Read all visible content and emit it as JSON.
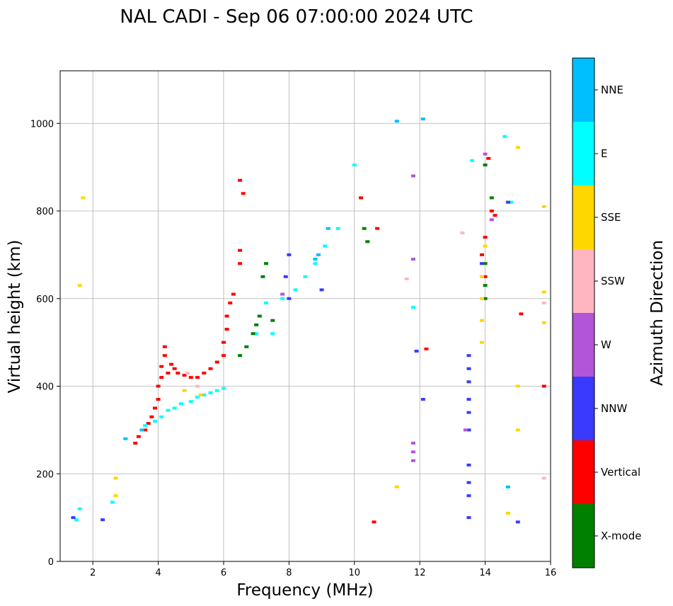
{
  "chart_data": {
    "type": "scatter",
    "title": "NAL CADI - Sep 06 07:00:00 2024 UTC",
    "xlabel": "Frequency (MHz)",
    "ylabel": "Virtual height (km)",
    "xlim": [
      1,
      16
    ],
    "ylim": [
      0,
      1120
    ],
    "xticks": [
      2,
      4,
      6,
      8,
      10,
      12,
      14,
      16
    ],
    "yticks": [
      0,
      200,
      400,
      600,
      800,
      1000
    ],
    "grid": true,
    "colorbar": {
      "label": "Azimuth Direction",
      "categories": [
        {
          "name": "X-mode",
          "color": "#008000"
        },
        {
          "name": "Vertical",
          "color": "#ff0000"
        },
        {
          "name": "NNW",
          "color": "#3a3aff"
        },
        {
          "name": "W",
          "color": "#b255d6"
        },
        {
          "name": "SSW",
          "color": "#ffb6c1"
        },
        {
          "name": "SSE",
          "color": "#ffd700"
        },
        {
          "name": "E",
          "color": "#00ffff"
        },
        {
          "name": "NNE",
          "color": "#00bfff"
        }
      ]
    },
    "series": [
      {
        "name": "Vertical",
        "points": [
          [
            3.3,
            270
          ],
          [
            3.4,
            285
          ],
          [
            3.6,
            300
          ],
          [
            3.7,
            315
          ],
          [
            3.8,
            330
          ],
          [
            3.9,
            350
          ],
          [
            4.0,
            370
          ],
          [
            4.0,
            400
          ],
          [
            4.1,
            420
          ],
          [
            4.1,
            445
          ],
          [
            4.2,
            470
          ],
          [
            4.2,
            490
          ],
          [
            4.3,
            430
          ],
          [
            4.4,
            450
          ],
          [
            4.5,
            440
          ],
          [
            4.6,
            430
          ],
          [
            4.8,
            425
          ],
          [
            5.0,
            420
          ],
          [
            5.2,
            420
          ],
          [
            5.4,
            430
          ],
          [
            5.6,
            440
          ],
          [
            5.8,
            455
          ],
          [
            6.0,
            470
          ],
          [
            6.0,
            500
          ],
          [
            6.1,
            530
          ],
          [
            6.1,
            560
          ],
          [
            6.2,
            590
          ],
          [
            6.3,
            610
          ],
          [
            6.5,
            680
          ],
          [
            6.5,
            710
          ],
          [
            6.6,
            840
          ],
          [
            6.5,
            870
          ],
          [
            10.2,
            830
          ],
          [
            10.7,
            760
          ],
          [
            10.6,
            90
          ],
          [
            12.2,
            485
          ],
          [
            13.9,
            700
          ],
          [
            14.0,
            740
          ],
          [
            14.0,
            650
          ],
          [
            14.1,
            920
          ],
          [
            14.2,
            800
          ],
          [
            14.3,
            790
          ],
          [
            15.1,
            565
          ],
          [
            15.8,
            400
          ]
        ]
      },
      {
        "name": "E",
        "points": [
          [
            3.6,
            310
          ],
          [
            3.9,
            320
          ],
          [
            4.1,
            330
          ],
          [
            4.3,
            345
          ],
          [
            4.5,
            350
          ],
          [
            4.7,
            360
          ],
          [
            5.0,
            365
          ],
          [
            5.2,
            375
          ],
          [
            5.4,
            380
          ],
          [
            5.6,
            385
          ],
          [
            5.8,
            390
          ],
          [
            6.0,
            395
          ],
          [
            7.0,
            520
          ],
          [
            7.1,
            560
          ],
          [
            7.3,
            590
          ],
          [
            7.5,
            520
          ],
          [
            7.8,
            600
          ],
          [
            8.2,
            620
          ],
          [
            8.5,
            650
          ],
          [
            8.8,
            680
          ],
          [
            9.1,
            720
          ],
          [
            9.5,
            760
          ],
          [
            10.0,
            905
          ],
          [
            11.8,
            580
          ],
          [
            13.6,
            915
          ],
          [
            14.6,
            970
          ],
          [
            14.8,
            820
          ],
          [
            1.6,
            120
          ],
          [
            1.5,
            95
          ],
          [
            2.6,
            135
          ]
        ]
      },
      {
        "name": "X-mode",
        "points": [
          [
            6.5,
            470
          ],
          [
            6.7,
            490
          ],
          [
            6.9,
            520
          ],
          [
            7.0,
            540
          ],
          [
            7.1,
            560
          ],
          [
            7.2,
            650
          ],
          [
            7.3,
            680
          ],
          [
            7.5,
            550
          ],
          [
            10.4,
            730
          ],
          [
            10.3,
            760
          ],
          [
            14.0,
            600
          ],
          [
            14.0,
            630
          ],
          [
            14.0,
            680
          ],
          [
            14.2,
            830
          ],
          [
            14.0,
            905
          ]
        ]
      },
      {
        "name": "NNW",
        "points": [
          [
            8.0,
            600
          ],
          [
            7.9,
            650
          ],
          [
            8.0,
            700
          ],
          [
            9.0,
            620
          ],
          [
            11.9,
            480
          ],
          [
            12.1,
            370
          ],
          [
            13.5,
            470
          ],
          [
            13.5,
            440
          ],
          [
            13.5,
            410
          ],
          [
            13.5,
            370
          ],
          [
            13.5,
            340
          ],
          [
            13.5,
            300
          ],
          [
            13.5,
            220
          ],
          [
            13.5,
            180
          ],
          [
            13.5,
            150
          ],
          [
            13.5,
            100
          ],
          [
            13.9,
            680
          ],
          [
            14.7,
            820
          ],
          [
            15.0,
            90
          ],
          [
            2.3,
            95
          ],
          [
            1.4,
            100
          ]
        ]
      },
      {
        "name": "W",
        "points": [
          [
            11.8,
            880
          ],
          [
            11.8,
            690
          ],
          [
            11.8,
            250
          ],
          [
            11.8,
            270
          ],
          [
            11.8,
            230
          ],
          [
            13.4,
            300
          ],
          [
            14.0,
            930
          ],
          [
            14.2,
            780
          ],
          [
            7.8,
            610
          ]
        ]
      },
      {
        "name": "SSE",
        "points": [
          [
            13.9,
            500
          ],
          [
            13.9,
            550
          ],
          [
            13.9,
            600
          ],
          [
            13.9,
            650
          ],
          [
            14.0,
            720
          ],
          [
            15.0,
            945
          ],
          [
            15.0,
            300
          ],
          [
            15.0,
            400
          ],
          [
            15.8,
            810
          ],
          [
            15.8,
            615
          ],
          [
            15.8,
            545
          ],
          [
            14.7,
            110
          ],
          [
            11.3,
            170
          ],
          [
            1.7,
            830
          ],
          [
            1.6,
            630
          ],
          [
            2.7,
            190
          ],
          [
            2.7,
            150
          ],
          [
            4.8,
            390
          ],
          [
            5.3,
            380
          ]
        ]
      },
      {
        "name": "SSW",
        "points": [
          [
            4.9,
            430
          ],
          [
            5.2,
            400
          ],
          [
            13.3,
            750
          ],
          [
            15.8,
            590
          ],
          [
            15.8,
            190
          ],
          [
            11.6,
            645
          ]
        ]
      },
      {
        "name": "NNE",
        "points": [
          [
            9.2,
            760
          ],
          [
            8.9,
            700
          ],
          [
            12.1,
            1010
          ],
          [
            11.3,
            1005
          ],
          [
            8.8,
            690
          ],
          [
            14.7,
            170
          ],
          [
            3.5,
            300
          ],
          [
            3.0,
            280
          ]
        ]
      }
    ]
  }
}
